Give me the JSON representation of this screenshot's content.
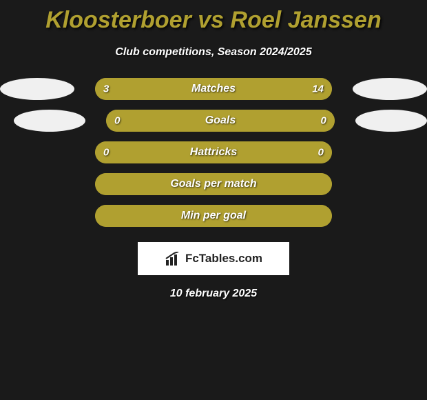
{
  "title": "Kloosterboer vs Roel Janssen",
  "subtitle": "Club competitions, Season 2024/2025",
  "accent_color": "#b0a030",
  "background_color": "#1a1a1a",
  "text_color": "#ffffff",
  "oval_color": "#f0f0f0",
  "bars": [
    {
      "label": "Matches",
      "left_value": "3",
      "right_value": "14",
      "left_pct": 17.6,
      "right_pct": 82.4,
      "has_left_oval": true,
      "has_right_oval": true,
      "oval_left_offset": 0,
      "full": false
    },
    {
      "label": "Goals",
      "left_value": "0",
      "right_value": "0",
      "left_pct": 0,
      "right_pct": 0,
      "has_left_oval": true,
      "has_right_oval": true,
      "oval_left_offset": 20,
      "full": true
    },
    {
      "label": "Hattricks",
      "left_value": "0",
      "right_value": "0",
      "left_pct": 0,
      "right_pct": 0,
      "has_left_oval": false,
      "has_right_oval": false,
      "full": true
    },
    {
      "label": "Goals per match",
      "left_value": "",
      "right_value": "",
      "left_pct": 0,
      "right_pct": 0,
      "has_left_oval": false,
      "has_right_oval": false,
      "full": true
    },
    {
      "label": "Min per goal",
      "left_value": "",
      "right_value": "",
      "left_pct": 0,
      "right_pct": 0,
      "has_left_oval": false,
      "has_right_oval": false,
      "full": true
    }
  ],
  "logo": {
    "text": "FcTables.com"
  },
  "date": "10 february 2025"
}
